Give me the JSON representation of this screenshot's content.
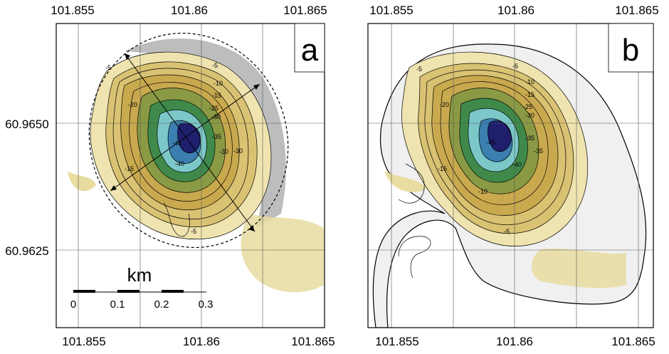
{
  "top_axis_labels": [
    "101.855",
    "101.86",
    "101.865"
  ],
  "bottom_axis_labels": [
    "101.855",
    "101.86",
    "101.865"
  ],
  "left_axis_labels": [
    "60.9650",
    "60.9625"
  ],
  "panels": [
    {
      "letter": "a",
      "contour_labels": [
        "-5",
        "-10",
        "-15",
        "-20",
        "-25",
        "-30",
        "-35",
        "-40",
        "-45",
        "-20",
        "-15",
        "-5",
        "-35",
        "-30",
        "-25"
      ]
    },
    {
      "letter": "b",
      "contour_labels": [
        "-5",
        "-10",
        "-15",
        "-20",
        "-25",
        "-30",
        "-35",
        "-40",
        "-45",
        "-20",
        "-15",
        "-10",
        "-5",
        "-35",
        "-30"
      ]
    }
  ],
  "scale_bar": {
    "unit": "km",
    "labels": [
      "0",
      "0.1",
      "0.2",
      "0.3"
    ]
  },
  "colors": {
    "shallow": "#e8dca0",
    "mid": "#c9a94e",
    "green": "#4e8f3a",
    "teal": "#4fb3b8",
    "deep": "#1f1f6e",
    "grey_zone": "#bdbdbd"
  }
}
